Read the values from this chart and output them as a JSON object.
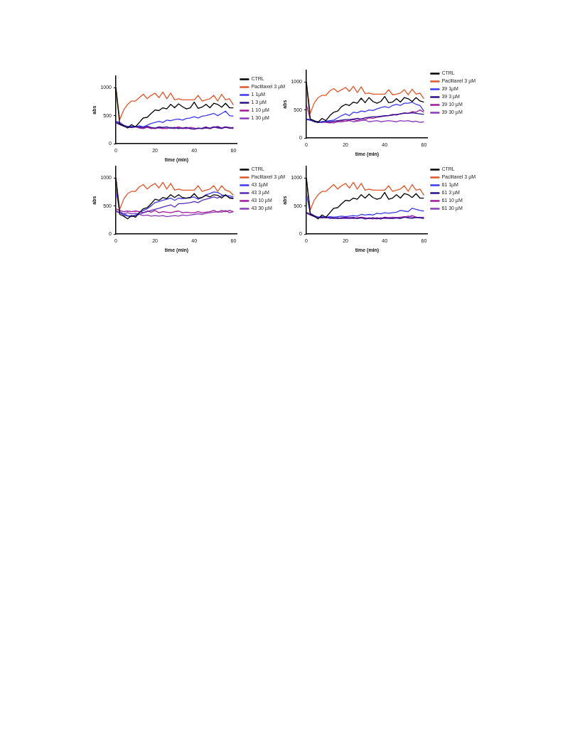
{
  "chart_data": [
    {
      "type": "line",
      "xlabel": "time (min)",
      "ylabel": "abs",
      "x": [
        0,
        2,
        4,
        6,
        8,
        10,
        12,
        14,
        16,
        18,
        20,
        22,
        24,
        26,
        28,
        30,
        32,
        34,
        36,
        38,
        40,
        42,
        44,
        46,
        48,
        50,
        52,
        54,
        56,
        58,
        60
      ],
      "xlim": [
        0,
        62
      ],
      "xticks": [
        0,
        20,
        40,
        60
      ],
      "ylim": [
        0,
        1200
      ],
      "yticks": [
        0,
        500,
        1000
      ],
      "grid": false,
      "legend": "right",
      "series": [
        {
          "name": "CTRL",
          "color": "#000000",
          "values": [
            1000,
            350,
            320,
            280,
            340,
            300,
            380,
            460,
            470,
            540,
            600,
            590,
            640,
            620,
            700,
            640,
            710,
            660,
            620,
            640,
            740,
            630,
            650,
            700,
            640,
            720,
            700,
            650,
            720,
            640,
            640
          ]
        },
        {
          "name": "Paclitaxel 3 µM",
          "color": "#e0572a",
          "values": [
            1000,
            430,
            600,
            700,
            760,
            760,
            820,
            880,
            800,
            860,
            900,
            820,
            920,
            800,
            900,
            780,
            800,
            780,
            780,
            780,
            780,
            860,
            760,
            780,
            800,
            860,
            760,
            880,
            780,
            800,
            690
          ]
        },
        {
          "name": "1 1µM",
          "color": "#3a3af0",
          "values": [
            400,
            380,
            330,
            300,
            310,
            300,
            320,
            300,
            330,
            360,
            380,
            400,
            380,
            420,
            410,
            430,
            440,
            420,
            450,
            460,
            480,
            460,
            490,
            500,
            520,
            540,
            500,
            540,
            580,
            500,
            490
          ]
        },
        {
          "name": "1 3 µM",
          "color": "#2a1090",
          "values": [
            380,
            350,
            320,
            310,
            290,
            300,
            300,
            290,
            310,
            290,
            280,
            300,
            290,
            300,
            280,
            290,
            270,
            280,
            290,
            270,
            260,
            280,
            270,
            290,
            280,
            300,
            290,
            280,
            300,
            280,
            290
          ]
        },
        {
          "name": "1 10 µM",
          "color": "#a01a9a",
          "values": [
            390,
            360,
            330,
            300,
            300,
            310,
            290,
            280,
            300,
            280,
            270,
            290,
            280,
            270,
            290,
            280,
            300,
            280,
            270,
            290,
            280,
            270,
            280,
            300,
            270,
            290,
            310,
            280,
            300,
            290,
            280
          ]
        },
        {
          "name": "1 30 µM",
          "color": "#8a3ab8",
          "values": [
            370,
            340,
            310,
            290,
            290,
            300,
            280,
            270,
            290,
            270,
            280,
            280,
            270,
            280,
            280,
            270,
            290,
            270,
            280,
            270,
            260,
            280,
            270,
            280,
            270,
            300,
            280,
            270,
            290,
            280,
            270
          ]
        }
      ]
    },
    {
      "type": "line",
      "xlabel": "time (min)",
      "ylabel": "abs",
      "x": [
        0,
        2,
        4,
        6,
        8,
        10,
        12,
        14,
        16,
        18,
        20,
        22,
        24,
        26,
        28,
        30,
        32,
        34,
        36,
        38,
        40,
        42,
        44,
        46,
        48,
        50,
        52,
        54,
        56,
        58,
        60
      ],
      "xlim": [
        0,
        62
      ],
      "xticks": [
        0,
        20,
        40,
        60
      ],
      "ylim": [
        0,
        1200
      ],
      "yticks": [
        0,
        500,
        1000
      ],
      "grid": false,
      "legend": "right",
      "series": [
        {
          "name": "CTRL",
          "color": "#000000",
          "values": [
            1000,
            340,
            310,
            280,
            350,
            310,
            400,
            460,
            480,
            560,
            600,
            580,
            640,
            620,
            710,
            630,
            720,
            650,
            620,
            650,
            740,
            630,
            640,
            700,
            640,
            720,
            700,
            650,
            720,
            660,
            640
          ]
        },
        {
          "name": "Paclitaxel 3 µM",
          "color": "#e0572a",
          "values": [
            1000,
            440,
            620,
            720,
            760,
            760,
            840,
            880,
            820,
            860,
            900,
            830,
            920,
            810,
            910,
            790,
            800,
            780,
            780,
            780,
            780,
            860,
            770,
            780,
            800,
            860,
            770,
            870,
            780,
            800,
            700
          ]
        },
        {
          "name": "39 1µM",
          "color": "#3a3af0",
          "values": [
            340,
            330,
            300,
            290,
            280,
            300,
            310,
            320,
            360,
            400,
            430,
            400,
            460,
            450,
            480,
            470,
            500,
            490,
            520,
            540,
            560,
            540,
            580,
            600,
            580,
            620,
            620,
            640,
            600,
            580,
            480
          ]
        },
        {
          "name": "39 3 µM",
          "color": "#2a1090",
          "values": [
            330,
            320,
            290,
            280,
            290,
            300,
            290,
            300,
            310,
            320,
            330,
            330,
            340,
            350,
            340,
            360,
            370,
            380,
            380,
            390,
            400,
            400,
            410,
            420,
            430,
            440,
            440,
            450,
            440,
            430,
            420
          ]
        },
        {
          "name": "39 10 µM",
          "color": "#a01a9a",
          "values": [
            600,
            340,
            300,
            290,
            280,
            290,
            280,
            270,
            300,
            310,
            300,
            320,
            330,
            310,
            340,
            330,
            360,
            350,
            370,
            380,
            390,
            400,
            420,
            410,
            430,
            450,
            440,
            470,
            460,
            500,
            460
          ]
        },
        {
          "name": "39 30 µM",
          "color": "#8a3ab8",
          "values": [
            340,
            320,
            300,
            280,
            290,
            280,
            270,
            280,
            290,
            290,
            300,
            310,
            290,
            300,
            310,
            320,
            290,
            300,
            310,
            290,
            300,
            310,
            300,
            290,
            310,
            300,
            310,
            290,
            300,
            280,
            290
          ]
        }
      ]
    },
    {
      "type": "line",
      "xlabel": "time (min)",
      "ylabel": "abs",
      "x": [
        0,
        2,
        4,
        6,
        8,
        10,
        12,
        14,
        16,
        18,
        20,
        22,
        24,
        26,
        28,
        30,
        32,
        34,
        36,
        38,
        40,
        42,
        44,
        46,
        48,
        50,
        52,
        54,
        56,
        58,
        60
      ],
      "xlim": [
        0,
        62
      ],
      "xticks": [
        0,
        20,
        40,
        60
      ],
      "ylim": [
        0,
        1200
      ],
      "yticks": [
        0,
        500,
        1000
      ],
      "grid": false,
      "legend": "right",
      "series": [
        {
          "name": "CTRL",
          "color": "#000000",
          "values": [
            1000,
            350,
            320,
            270,
            330,
            300,
            380,
            450,
            470,
            540,
            620,
            600,
            650,
            630,
            700,
            650,
            700,
            650,
            640,
            650,
            720,
            640,
            650,
            690,
            660,
            700,
            690,
            640,
            700,
            640,
            630
          ]
        },
        {
          "name": "Paclitaxel 3 µM",
          "color": "#e0572a",
          "values": [
            1000,
            440,
            620,
            720,
            760,
            760,
            840,
            880,
            800,
            860,
            900,
            820,
            920,
            800,
            900,
            780,
            800,
            780,
            780,
            780,
            780,
            860,
            760,
            780,
            800,
            860,
            760,
            860,
            780,
            760,
            690
          ]
        },
        {
          "name": "43 1µM",
          "color": "#3a3af0",
          "values": [
            800,
            400,
            360,
            330,
            320,
            340,
            380,
            420,
            450,
            500,
            560,
            580,
            600,
            620,
            640,
            600,
            640,
            630,
            640,
            650,
            660,
            620,
            650,
            700,
            720,
            750,
            740,
            700,
            680,
            680,
            660
          ]
        },
        {
          "name": "43 3 µM",
          "color": "#5a2ab8",
          "values": [
            420,
            380,
            340,
            320,
            310,
            330,
            350,
            380,
            400,
            420,
            440,
            460,
            480,
            500,
            520,
            480,
            540,
            540,
            550,
            560,
            580,
            560,
            600,
            620,
            640,
            660,
            640,
            680,
            690,
            650,
            640
          ]
        },
        {
          "name": "43 10 µM",
          "color": "#a01a9a",
          "values": [
            450,
            420,
            400,
            410,
            400,
            410,
            400,
            380,
            410,
            390,
            420,
            380,
            400,
            390,
            380,
            400,
            410,
            380,
            390,
            380,
            380,
            400,
            380,
            390,
            400,
            420,
            390,
            420,
            400,
            420,
            400
          ]
        },
        {
          "name": "43 30 µM",
          "color": "#8a3ab8",
          "values": [
            400,
            380,
            360,
            380,
            360,
            370,
            350,
            330,
            340,
            320,
            330,
            320,
            330,
            310,
            320,
            330,
            320,
            340,
            330,
            340,
            350,
            360,
            350,
            370,
            380,
            390,
            400,
            390,
            420,
            380,
            400
          ]
        }
      ]
    },
    {
      "type": "line",
      "xlabel": "time (min)",
      "ylabel": "abs",
      "x": [
        0,
        2,
        4,
        6,
        8,
        10,
        12,
        14,
        16,
        18,
        20,
        22,
        24,
        26,
        28,
        30,
        32,
        34,
        36,
        38,
        40,
        42,
        44,
        46,
        48,
        50,
        52,
        54,
        56,
        58,
        60
      ],
      "xlim": [
        0,
        62
      ],
      "xticks": [
        0,
        20,
        40,
        60
      ],
      "ylim": [
        0,
        1200
      ],
      "yticks": [
        0,
        500,
        1000
      ],
      "grid": false,
      "legend": "right",
      "series": [
        {
          "name": "CTRL",
          "color": "#000000",
          "values": [
            1000,
            350,
            320,
            270,
            340,
            300,
            380,
            460,
            470,
            540,
            600,
            590,
            640,
            620,
            700,
            640,
            710,
            650,
            620,
            640,
            740,
            620,
            640,
            700,
            640,
            720,
            700,
            650,
            720,
            640,
            640
          ]
        },
        {
          "name": "Paclitaxel 3 µM",
          "color": "#e0572a",
          "values": [
            1000,
            430,
            600,
            700,
            760,
            760,
            820,
            880,
            800,
            860,
            900,
            820,
            920,
            800,
            900,
            780,
            800,
            780,
            780,
            780,
            780,
            860,
            760,
            780,
            800,
            860,
            760,
            880,
            780,
            800,
            690
          ]
        },
        {
          "name": "61 1µM",
          "color": "#3a3af0",
          "values": [
            720,
            370,
            330,
            300,
            310,
            300,
            310,
            300,
            310,
            320,
            310,
            320,
            330,
            320,
            350,
            340,
            350,
            340,
            370,
            360,
            380,
            370,
            380,
            390,
            420,
            410,
            400,
            460,
            440,
            420,
            410
          ]
        },
        {
          "name": "61 3 µM",
          "color": "#2a1090",
          "values": [
            380,
            350,
            320,
            300,
            290,
            300,
            290,
            280,
            290,
            280,
            290,
            280,
            290,
            280,
            290,
            270,
            280,
            290,
            280,
            270,
            290,
            280,
            280,
            290,
            280,
            300,
            290,
            280,
            300,
            290,
            280
          ]
        },
        {
          "name": "61 10 µM",
          "color": "#a01a9a",
          "values": [
            390,
            350,
            320,
            290,
            300,
            290,
            290,
            300,
            280,
            290,
            300,
            290,
            280,
            290,
            300,
            290,
            280,
            270,
            290,
            280,
            300,
            290,
            280,
            290,
            300,
            310,
            300,
            330,
            300,
            290,
            300
          ]
        },
        {
          "name": "61 30 µM",
          "color": "#8a3ab8",
          "values": [
            370,
            340,
            310,
            300,
            290,
            300,
            280,
            290,
            280,
            290,
            280,
            290,
            300,
            280,
            290,
            280,
            290,
            280,
            270,
            290,
            280,
            290,
            300,
            290,
            280,
            300,
            320,
            300,
            290,
            300,
            280
          ]
        }
      ]
    }
  ]
}
